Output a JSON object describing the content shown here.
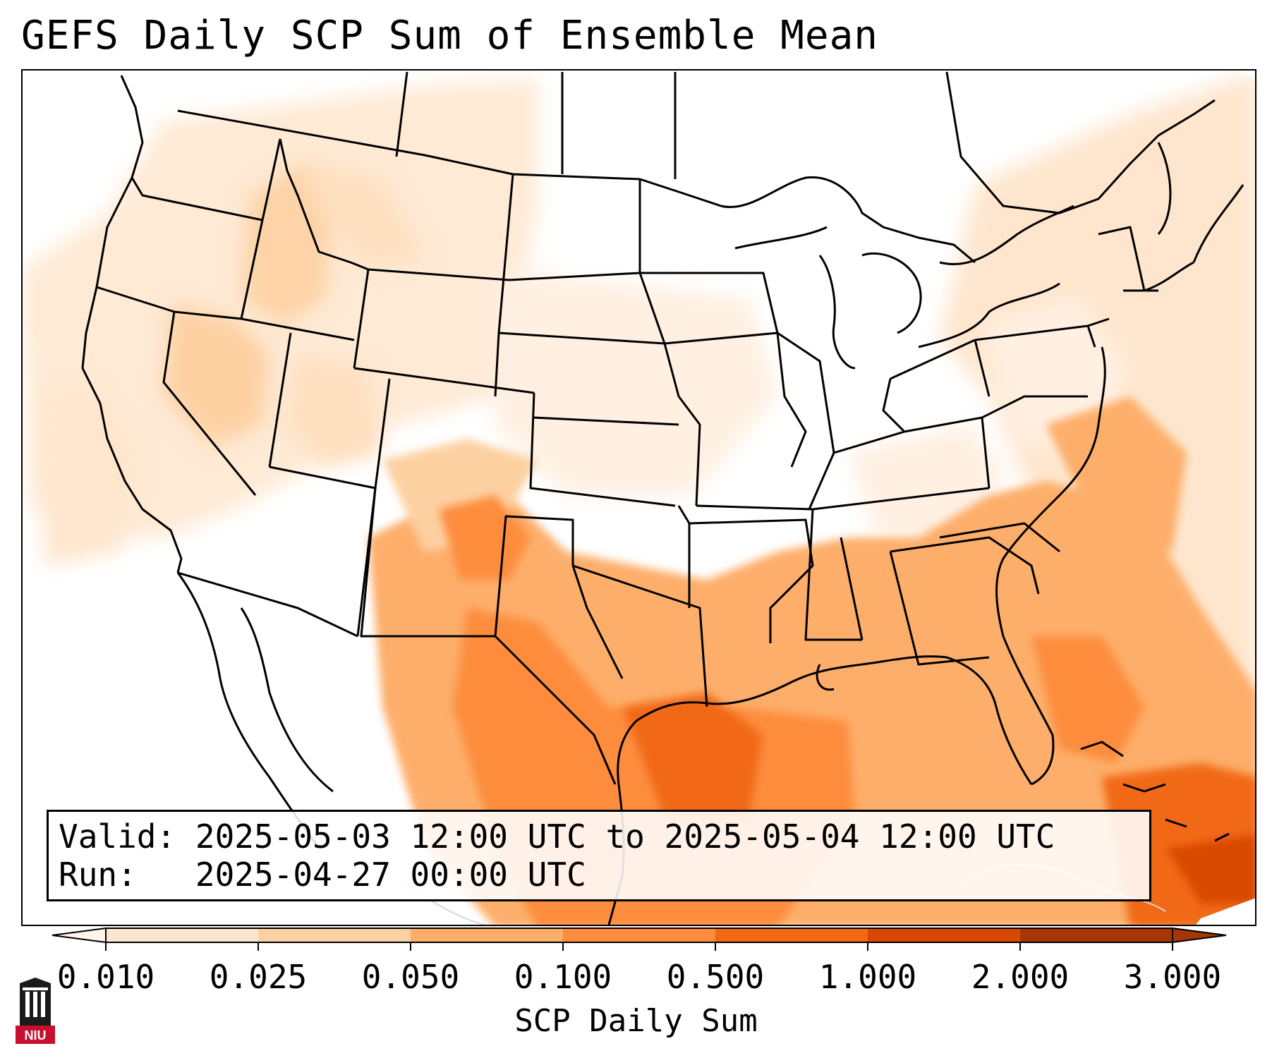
{
  "title": "GEFS Daily SCP Sum of Ensemble Mean",
  "info": {
    "valid_label": "Valid:",
    "valid_value": "2025-05-03 12:00 UTC to 2025-05-04 12:00 UTC",
    "run_label": "Run:",
    "run_value": "2025-04-27 00:00 UTC"
  },
  "colorbar": {
    "title": "SCP Daily Sum",
    "ticks": [
      "0.010",
      "0.025",
      "0.050",
      "0.100",
      "0.500",
      "1.000",
      "2.000",
      "3.000"
    ],
    "colors": [
      "#fff5eb",
      "#fee6ce",
      "#fdd0a2",
      "#fdae6b",
      "#fd8d3c",
      "#f16913",
      "#d94801",
      "#a63603"
    ],
    "extend": "both"
  },
  "logo": {
    "text": "NIU",
    "background": "#c8102e"
  },
  "map": {
    "projection": "Lambert Conformal",
    "region": "CONUS"
  }
}
